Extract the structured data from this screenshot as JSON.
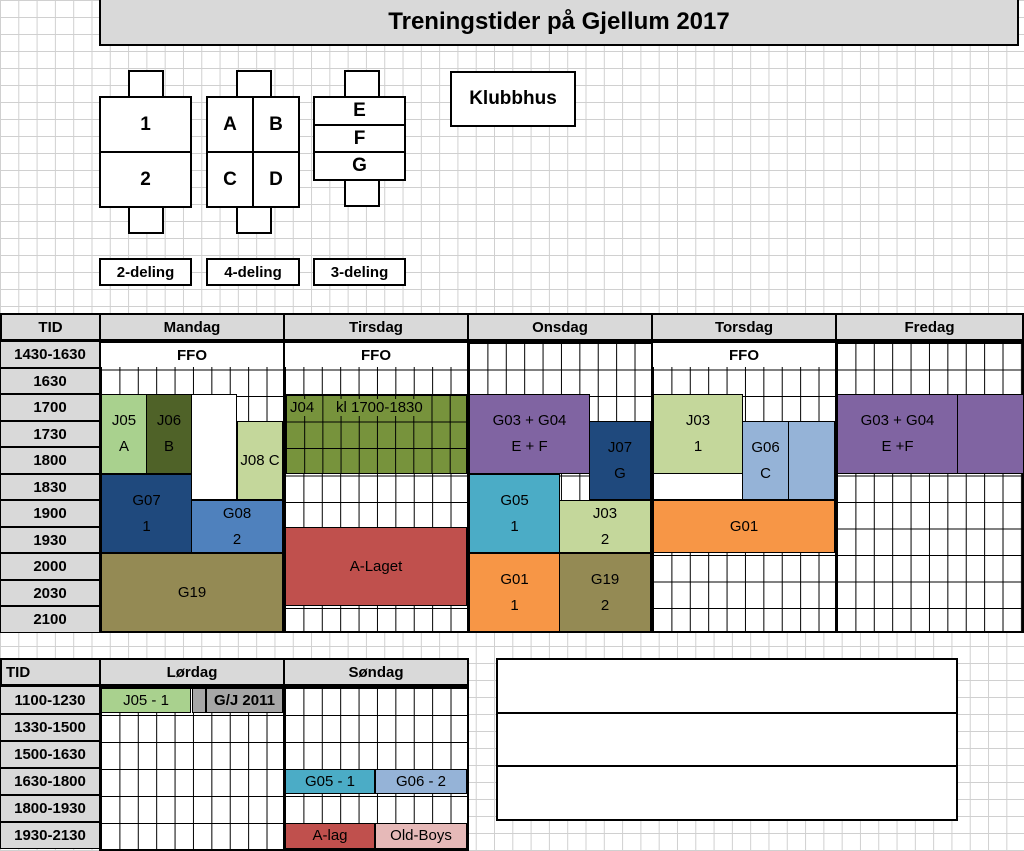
{
  "title": "Treningstider på Gjellum 2017",
  "diagrams": {
    "two": {
      "top": "1",
      "bottom": "2",
      "caption": "2-deling"
    },
    "four": {
      "a": "A",
      "b": "B",
      "c": "C",
      "d": "D",
      "caption": "4-deling"
    },
    "three": {
      "e": "E",
      "f": "F",
      "g": "G",
      "caption": "3-deling"
    },
    "clubhouse": "Klubbhus"
  },
  "weekday_table": {
    "corner": "TID",
    "days": [
      "Mandag",
      "Tirsdag",
      "Onsdag",
      "Torsdag",
      "Fredag"
    ],
    "times": [
      "1430-1630",
      "1630",
      "1700",
      "1730",
      "1800",
      "1830",
      "1900",
      "1930",
      "2000",
      "2030",
      "2100"
    ],
    "ffo": "FFO",
    "blocks": {
      "j05": "J05\nA",
      "j06": "J06\nB",
      "j08": "J08 C",
      "g07": "G07\n1",
      "g08": "G08\n2",
      "g19_mon": "G19",
      "j04": "J04",
      "j04_time": "kl 1700-1830",
      "a_laget": "A-Laget",
      "g03g04_wed": "G03 + G04\nE + F",
      "j07": "J07\nG",
      "g05": "G05\n1",
      "j03_wed": "J03\n2",
      "g01_wed": "G01\n1",
      "g19_wed": "G19\n2",
      "j03_thu": "J03\n1",
      "g06": "G06\nC",
      "g01_thu": "G01",
      "g03g04_fri": "G03 + G04\nE +F"
    }
  },
  "weekend_table": {
    "corner": "TID",
    "days": [
      "Lørdag",
      "Søndag"
    ],
    "times": [
      "1100-1230",
      "1330-1500",
      "1500-1630",
      "1630-1800",
      "1800-1930",
      "1930-2130"
    ],
    "blocks": {
      "j05_1": "J05 - 1",
      "gj2011": "G/J 2011",
      "g05_1": "G05 - 1",
      "g06_2": "G06 - 2",
      "a_lag": "A-lag",
      "old_boys": "Old-Boys"
    }
  },
  "colors": {
    "light_green": "#a9d18e",
    "dark_olive": "#4f6228",
    "light_olive": "#c4d79b",
    "navy": "#1f497d",
    "blue": "#4f81bd",
    "olive": "#948a54",
    "red": "#c0504d",
    "grass_green": "#77933c",
    "purple": "#8064a2",
    "cyan": "#4bacc6",
    "orange": "#f79646",
    "light_blue": "#95b3d7",
    "grey": "#a6a6a6",
    "pink": "#e6b9b8"
  }
}
